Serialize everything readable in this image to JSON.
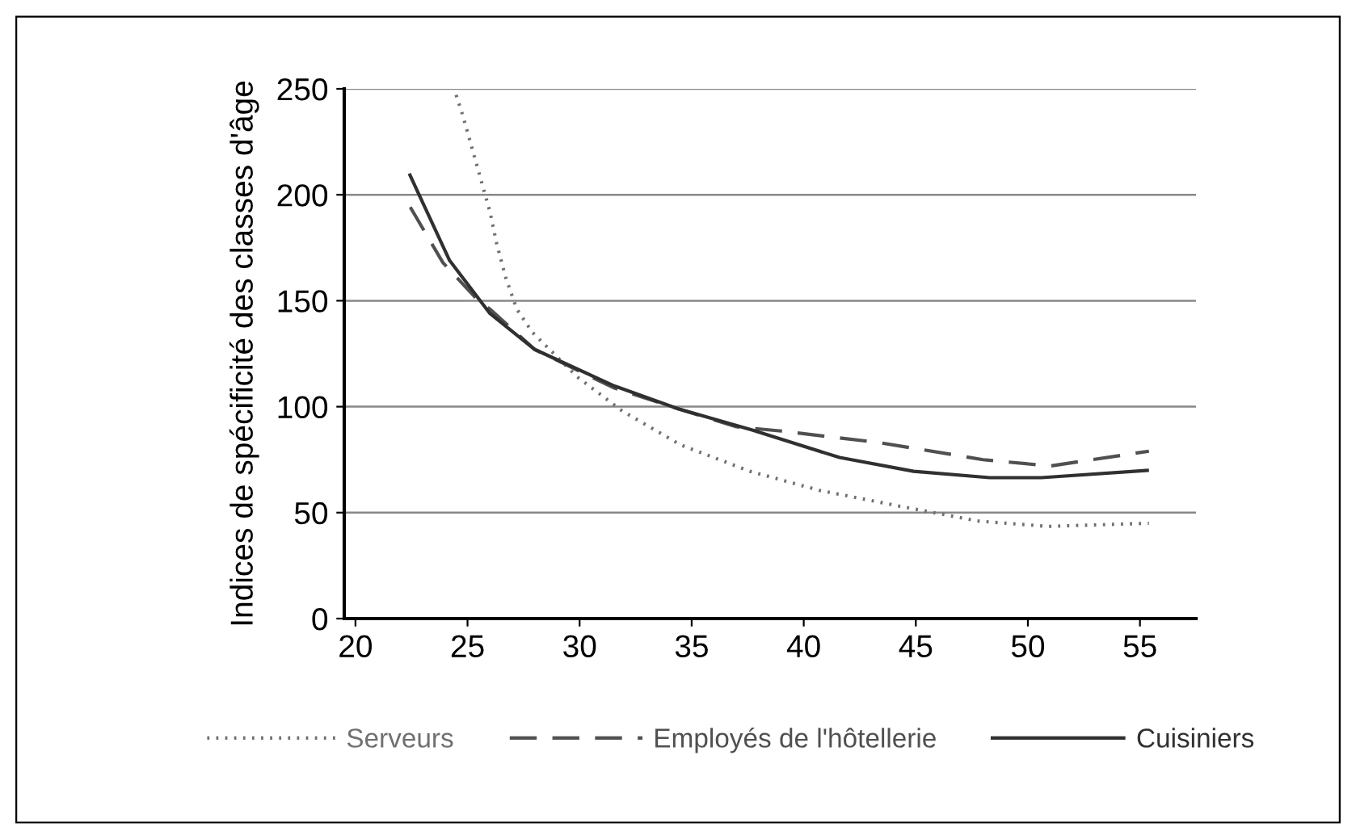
{
  "chart_data": {
    "type": "line",
    "ylabel": "Indices de spécificité des classes d'âge",
    "xlim": [
      19.5,
      57.5
    ],
    "xticks": [
      20,
      25,
      30,
      35,
      40,
      45,
      50,
      55
    ],
    "ylim": [
      0,
      250
    ],
    "yticks": [
      0,
      50,
      100,
      150,
      200,
      250
    ],
    "grid": "y",
    "legend": "bottom",
    "marker": "none",
    "series": [
      {
        "name": "Serveurs",
        "color": "#707070",
        "line_style": "dotted",
        "x": [
          24.4,
          24.8,
          25.2,
          25.6,
          26,
          26.3,
          26.7,
          27.2,
          27.9,
          29.9,
          31.9,
          34.5,
          37.6,
          40.7,
          44.3,
          47.8,
          50.9,
          55.4
        ],
        "values": [
          250,
          237,
          222,
          207,
          192,
          177,
          161,
          146,
          135,
          114,
          98,
          82,
          69.5,
          60.5,
          53,
          46,
          43.5,
          45
        ]
      },
      {
        "name": "Employés de l'hôtellerie",
        "color": "#505050",
        "line_style": "dashed",
        "x": [
          22.4,
          23.9,
          25.4,
          26,
          28,
          31.5,
          34.4,
          37,
          39,
          43.4,
          48,
          51,
          55.4
        ],
        "values": [
          195,
          168,
          151,
          146,
          127,
          109,
          99,
          90.5,
          88.5,
          83,
          75,
          72,
          79
        ]
      },
      {
        "name": "Cuisiniers",
        "color": "#303030",
        "line_style": "solid",
        "x": [
          22.4,
          24.2,
          26,
          28,
          31.5,
          34.4,
          37.7,
          41.6,
          44.9,
          48.3,
          50.6,
          55.4
        ],
        "values": [
          210,
          169,
          144,
          127,
          110,
          99,
          89,
          76,
          69.5,
          66.5,
          66.5,
          70
        ]
      }
    ]
  }
}
